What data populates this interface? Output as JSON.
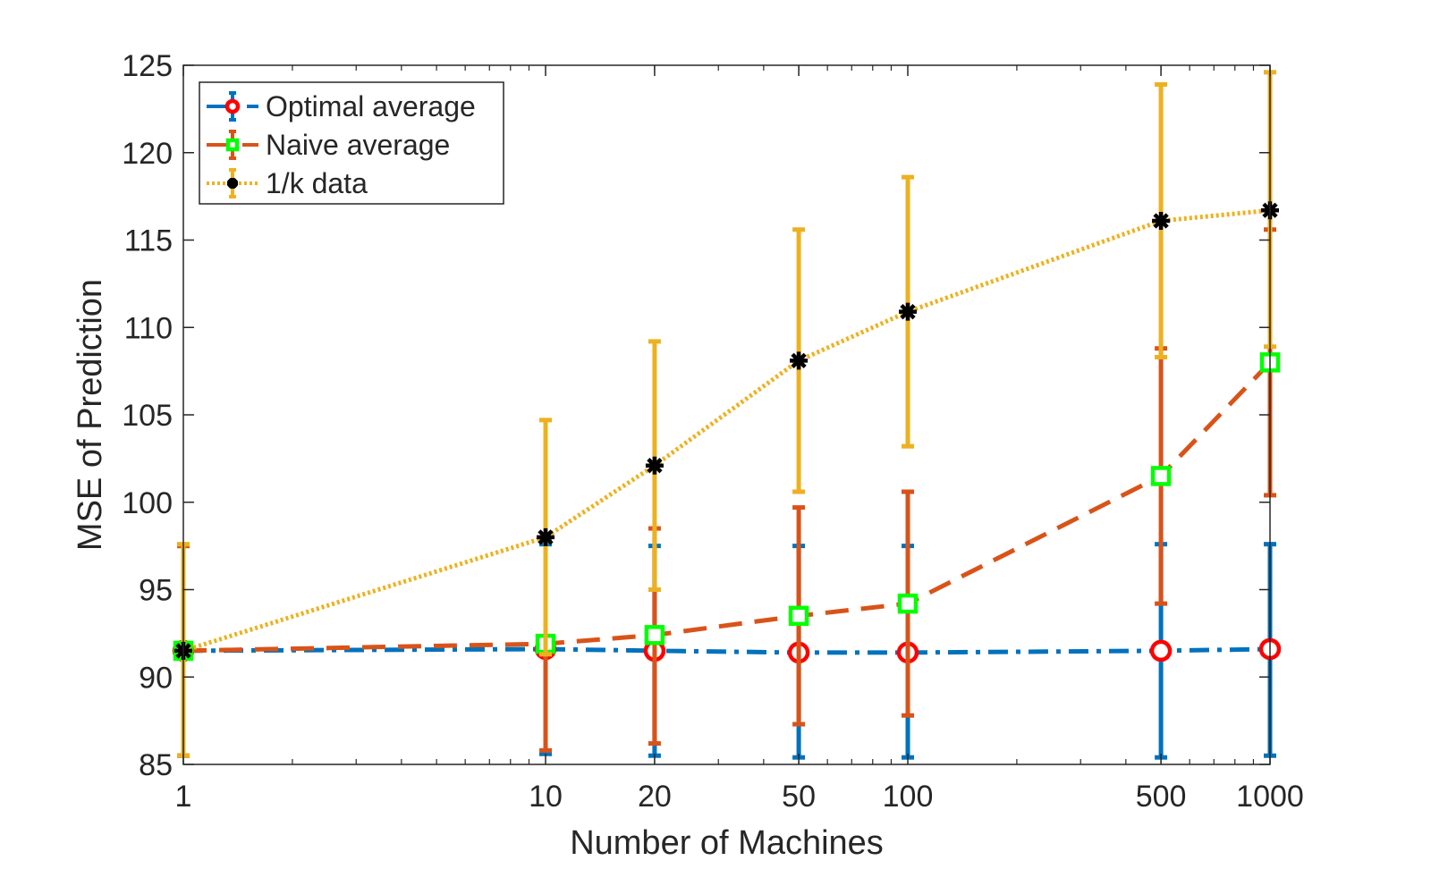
{
  "chart_data": {
    "type": "line",
    "title": "",
    "xlabel": "Number of Machines",
    "ylabel": "MSE of Prediction",
    "x_scale": "log",
    "xlim": [
      1,
      1000
    ],
    "ylim": [
      85,
      125
    ],
    "x": [
      1,
      10,
      20,
      50,
      100,
      500,
      1000
    ],
    "x_tick_labels": [
      "1",
      "10",
      "20",
      "50",
      "100",
      "500",
      "1000"
    ],
    "y_ticks": [
      85,
      90,
      95,
      100,
      105,
      110,
      115,
      120,
      125
    ],
    "y_tick_labels": [
      "85",
      "90",
      "95",
      "100",
      "105",
      "110",
      "115",
      "120",
      "125"
    ],
    "grid": false,
    "legend_position": "top-left",
    "series": [
      {
        "name": "Optimal average",
        "line_color": "#0072BD",
        "marker_color": "#ff0000",
        "line_style": "dash-dot",
        "marker": "circle",
        "values": [
          91.5,
          91.6,
          91.5,
          91.4,
          91.4,
          91.5,
          91.6
        ],
        "err_low": [
          85.5,
          85.6,
          85.5,
          85.4,
          85.4,
          85.4,
          85.5
        ],
        "err_high": [
          97.5,
          97.6,
          97.5,
          97.5,
          97.5,
          97.6,
          97.6
        ]
      },
      {
        "name": "Naive average",
        "line_color": "#D95319",
        "marker_color": "#00ff00",
        "line_style": "dashed",
        "marker": "square",
        "values": [
          91.5,
          91.9,
          92.4,
          93.5,
          94.2,
          101.5,
          108
        ],
        "err_low": [
          85.5,
          85.8,
          86.2,
          87.3,
          87.8,
          94.2,
          100.4
        ],
        "err_high": [
          97.5,
          97.8,
          98.5,
          99.7,
          100.6,
          108.8,
          115.6
        ]
      },
      {
        "name": "1/k data",
        "line_color": "#EDB120",
        "marker_color": "#000000",
        "line_style": "dotted",
        "marker": "asterisk",
        "values": [
          91.5,
          98,
          102.1,
          108.1,
          110.9,
          116.1,
          116.7
        ],
        "err_low": [
          85.5,
          91.3,
          95,
          100.6,
          103.2,
          108.3,
          108.9
        ],
        "err_high": [
          97.6,
          104.7,
          109.2,
          115.6,
          118.6,
          123.9,
          124.6
        ]
      }
    ]
  }
}
